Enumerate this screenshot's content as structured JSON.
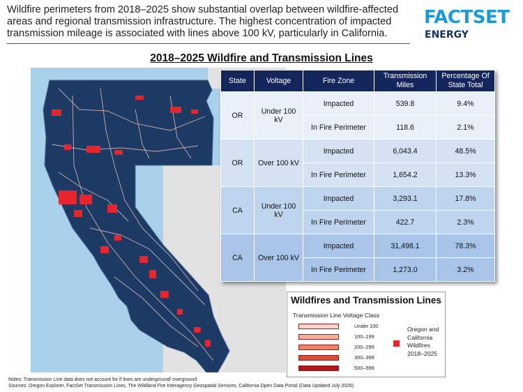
{
  "intro": {
    "text": "Wildfire perimeters from 2018–2025 show substantial overlap between wildfire-affected areas and regional transmission infrastructure. The highest concentration of impacted transmission mileage is associated with lines above 100 kV, particularly in California."
  },
  "logo": {
    "main": "FACTSET",
    "sub": "ENERGY"
  },
  "map_title": "2018–2025 Wildfire and Transmission Lines",
  "colors": {
    "ocean": "#a9d0ea",
    "state_fill": "#1c3a64",
    "neighbor_land": "#e2e2e2",
    "fire": "#e8242c",
    "line": "#f0c0b8",
    "table_header": "#14255c",
    "brand_blue": "#1b9ad6",
    "brand_navy": "#14315f"
  },
  "table": {
    "headers": [
      "State",
      "Voltage",
      "Fire Zone",
      "Transmission Miles",
      "Percentage Of State Total"
    ],
    "groups": [
      {
        "state": "OR",
        "voltage": "Under 100 kV",
        "rows": [
          {
            "zone": "Impacted",
            "miles": "539.8",
            "pct": "9.4%"
          },
          {
            "zone": "In Fire Perimeter",
            "miles": "118.6",
            "pct": "2.1%"
          }
        ]
      },
      {
        "state": "OR",
        "voltage": "Over 100 kV",
        "rows": [
          {
            "zone": "Impacted",
            "miles": "6,043.4",
            "pct": "48.5%"
          },
          {
            "zone": "In Fire Perimeter",
            "miles": "1,654.2",
            "pct": "13.3%"
          }
        ]
      },
      {
        "state": "CA",
        "voltage": "Under 100 kV",
        "rows": [
          {
            "zone": "Impacted",
            "miles": "3,293.1",
            "pct": "17.8%"
          },
          {
            "zone": "In Fire Perimeter",
            "miles": "422.7",
            "pct": "2.3%"
          }
        ]
      },
      {
        "state": "CA",
        "voltage": "Over 100 kV",
        "rows": [
          {
            "zone": "Impacted",
            "miles": "31,498.1",
            "pct": "78.3%"
          },
          {
            "zone": "In Fire Perimeter",
            "miles": "1,273.0",
            "pct": "3.2%"
          }
        ]
      }
    ]
  },
  "legend": {
    "title": "Wildfires and Transmission Lines",
    "subtitle": "Transmission Line Voltage Class",
    "classes": [
      {
        "label": "Under 100",
        "color": "#fbd6cc"
      },
      {
        "label": "100–199",
        "color": "#f7b09c"
      },
      {
        "label": "200–299",
        "color": "#ef8368"
      },
      {
        "label": "300–399",
        "color": "#de4c38"
      },
      {
        "label": "500–599",
        "color": "#b3141e"
      }
    ],
    "fire_label": "Oregon and California Wildfires 2018–2025"
  },
  "notes": {
    "line1": "Notes: Transmission Line data does not account for if lines are underground/ overground",
    "line2": "Sources: Oregon Explorer, FactSet Transmission Lines, The Wildland Fire Interagency Geospatial Services, California Open Data Portal (Data Updated July 2026)"
  }
}
